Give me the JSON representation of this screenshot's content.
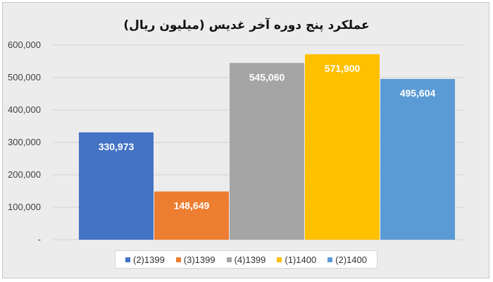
{
  "chart_data": {
    "type": "bar",
    "title": "عملکرد پنج دوره آخر غدیس (میلیون ریال)",
    "categories": [
      "(2)1399",
      "(3)1399",
      "(4)1399",
      "(1)1400",
      "(2)1400"
    ],
    "values": [
      330973,
      148649,
      545060,
      571900,
      495604
    ],
    "data_labels": [
      "330,973",
      "148,649",
      "545,060",
      "571,900",
      "495,604"
    ],
    "colors": [
      "#4472c4",
      "#ed7d31",
      "#a5a5a5",
      "#ffc000",
      "#5b9bd5"
    ],
    "ylim": [
      0,
      600000
    ],
    "y_ticks": [
      {
        "value": 0,
        "label": "-"
      },
      {
        "value": 100000,
        "label": "100,000"
      },
      {
        "value": 200000,
        "label": "200,000"
      },
      {
        "value": 300000,
        "label": "300,000"
      },
      {
        "value": 400000,
        "label": "400,000"
      },
      {
        "value": 500000,
        "label": "500,000"
      },
      {
        "value": 600000,
        "label": "600,000"
      }
    ],
    "grid": true,
    "legend_position": "bottom"
  }
}
